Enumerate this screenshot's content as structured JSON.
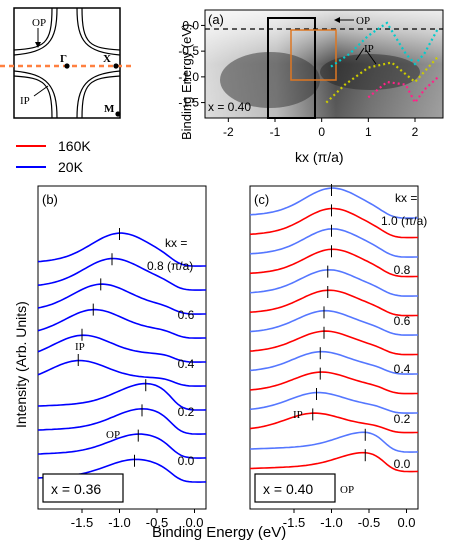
{
  "bz_diagram": {
    "labels": {
      "op": "OP",
      "gamma": "Γ",
      "x": "X",
      "ip": "IP",
      "m": "M"
    }
  },
  "legend": {
    "items": [
      {
        "label": "160K",
        "color": "#ff0000"
      },
      {
        "label": "20K",
        "color": "#0000ff"
      }
    ]
  },
  "panel_a": {
    "label": "(a)",
    "ylabel": "Binding Energy (eV)",
    "xlabel": "kx (π/a)",
    "xticks": [
      "-2",
      "-1",
      "0",
      "1",
      "2"
    ],
    "yticks": [
      "0.0",
      "-0.5",
      "-1.0",
      "-1.5"
    ],
    "annotation": "x = 0.40",
    "op_label": "OP",
    "ip_label": "IP"
  },
  "panel_b": {
    "label": "(b)",
    "ylabel": "Intensity (Arb. Units)",
    "kx_header": "kx =",
    "kx_unit": "0.8 (π/a)",
    "kx_labels": [
      "0.6",
      "0.4",
      "0.2",
      "0.0"
    ],
    "ip_label": "IP",
    "op_label": "OP",
    "sample": "x = 0.36",
    "xticks": [
      "-1.5",
      "-1.0",
      "-0.5",
      "0.0"
    ]
  },
  "panel_c": {
    "label": "(c)",
    "kx_header": "kx =",
    "kx_unit": "1.0 (π/a)",
    "kx_labels": [
      "0.8",
      "0.6",
      "0.4",
      "0.2",
      "0.0"
    ],
    "ip_label": "IP",
    "op_label": "OP",
    "sample": "x = 0.40",
    "xticks": [
      "-1.5",
      "-1.0",
      "-0.5",
      "0.0"
    ]
  },
  "xlabel_bottom": "Binding Energy (eV)",
  "chart_data": [
    {
      "type": "line",
      "panel": "a",
      "title": "",
      "xlabel": "kx (π/a)",
      "ylabel": "Binding Energy (eV)",
      "xlim": [
        -2.5,
        2.6
      ],
      "ylim": [
        -1.8,
        0.3
      ],
      "series": [
        {
          "name": "OP",
          "color": "#00cccc",
          "x": [
            0.2,
            0.6,
            1.0,
            1.4,
            1.8,
            2.0,
            2.2,
            2.5
          ],
          "y": [
            -0.8,
            -0.55,
            -0.2,
            0.05,
            -0.55,
            -0.75,
            -0.55,
            -0.05
          ]
        },
        {
          "name": "IP",
          "color": "#cccc00",
          "x": [
            0.1,
            0.5,
            1.0,
            1.5,
            2.0,
            2.5
          ],
          "y": [
            -1.5,
            -1.15,
            -0.82,
            -0.72,
            -1.1,
            -0.6
          ]
        },
        {
          "name": "IP",
          "color": "#ff2288",
          "x": [
            1.0,
            1.4,
            1.8,
            2.0,
            2.2,
            2.5
          ],
          "y": [
            -1.4,
            -1.1,
            -1.15,
            -1.5,
            -1.25,
            -1.0
          ]
        }
      ]
    },
    {
      "type": "line",
      "panel": "b",
      "title": "",
      "xlabel": "Binding Energy (eV)",
      "ylabel": "Intensity (Arb. Units)",
      "xlim": [
        -1.9,
        0.1
      ],
      "series": [
        {
          "name": "0.8",
          "color": "#0000ff",
          "peak": -1.0
        },
        {
          "name": "0.6",
          "color": "#0000ff",
          "peak": -1.3
        },
        {
          "name": "0.4",
          "color": "#0000ff",
          "peak": -1.55
        },
        {
          "name": "0.2",
          "color": "#0000ff",
          "peak": -0.65
        },
        {
          "name": "0.0",
          "color": "#0000ff",
          "peak": -0.7
        }
      ]
    },
    {
      "type": "line",
      "panel": "c",
      "title": "",
      "xlabel": "Binding Energy (eV)",
      "xlim": [
        -1.9,
        0.1
      ],
      "series": [
        {
          "name": "1.0 (π/a) 20K",
          "color": "#5577ff",
          "peak": -1.0
        },
        {
          "name": "0.8",
          "color": "#ff0000",
          "peak": -1.0
        },
        {
          "name": "0.6",
          "color": "#ff0000",
          "peak": -1.05
        },
        {
          "name": "0.4",
          "color": "#ff0000",
          "peak": -1.15
        },
        {
          "name": "0.2",
          "color": "#ff0000",
          "peak": -1.25
        },
        {
          "name": "0.0",
          "color": "#ff0000",
          "peak": -0.55
        }
      ]
    }
  ]
}
